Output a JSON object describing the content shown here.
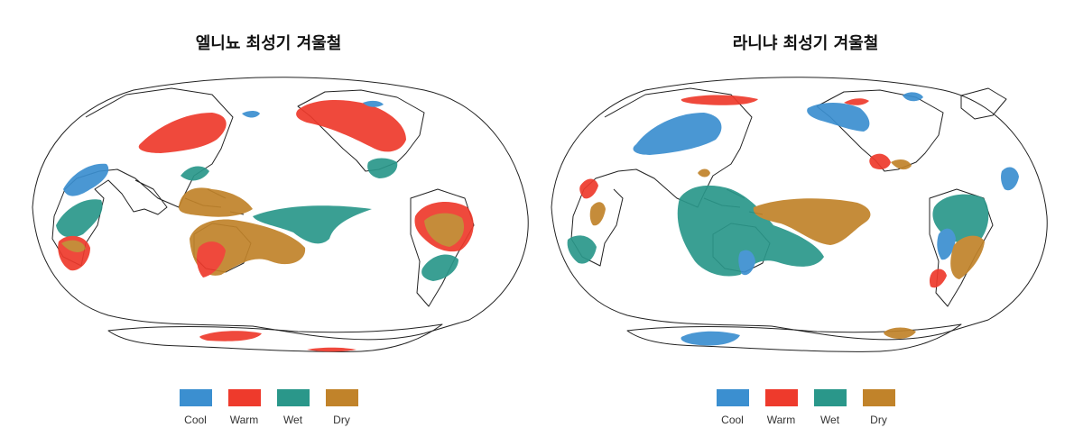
{
  "colors": {
    "cool": "#3b8fd0",
    "warm": "#ee3a2c",
    "wet": "#2a978a",
    "dry": "#c1832a"
  },
  "panels": [
    {
      "title": "엘니뇨 최성기 겨울철",
      "regions": [
        {
          "category": "warm",
          "area": "North Pacific / Northeast Asia"
        },
        {
          "category": "cool",
          "area": "Arctic Siberia"
        },
        {
          "category": "warm",
          "area": "Alaska and Canada"
        },
        {
          "category": "cool",
          "area": "Northern Canada"
        },
        {
          "category": "wet",
          "area": "Southeastern United States"
        },
        {
          "category": "cool",
          "area": "West Africa"
        },
        {
          "category": "wet",
          "area": "Southeast Africa"
        },
        {
          "category": "warm",
          "area": "Southern Africa"
        },
        {
          "category": "wet",
          "area": "Southeast Asia"
        },
        {
          "category": "dry",
          "area": "Maritime continent and western Pacific"
        },
        {
          "category": "wet",
          "area": "Central Pacific"
        },
        {
          "category": "dry",
          "area": "Australia and southwest Pacific"
        },
        {
          "category": "warm",
          "area": "Australia"
        },
        {
          "category": "warm",
          "area": "Northern South America"
        },
        {
          "category": "dry",
          "area": "Northern South America"
        },
        {
          "category": "wet",
          "area": "Southeastern South America"
        },
        {
          "category": "warm",
          "area": "Antarctica"
        }
      ]
    },
    {
      "title": "라니냐 최성기 겨울철",
      "regions": [
        {
          "category": "cool",
          "area": "Northeast Asia"
        },
        {
          "category": "warm",
          "area": "Arctic Siberia"
        },
        {
          "category": "cool",
          "area": "Alaska"
        },
        {
          "category": "warm",
          "area": "Northwest Canada"
        },
        {
          "category": "cool",
          "area": "Northern Canada"
        },
        {
          "category": "cool",
          "area": "Greenland / North Atlantic"
        },
        {
          "category": "warm",
          "area": "Southeastern United States"
        },
        {
          "category": "dry",
          "area": "Southeastern United States"
        },
        {
          "category": "warm",
          "area": "West Africa"
        },
        {
          "category": "dry",
          "area": "East Africa"
        },
        {
          "category": "wet",
          "area": "Southern Africa"
        },
        {
          "category": "dry",
          "area": "Arabian Sea"
        },
        {
          "category": "wet",
          "area": "Southeast Asia and Australia"
        },
        {
          "category": "dry",
          "area": "Central Pacific"
        },
        {
          "category": "cool",
          "area": "Australia"
        },
        {
          "category": "wet",
          "area": "Northern South America"
        },
        {
          "category": "cool",
          "area": "South America"
        },
        {
          "category": "dry",
          "area": "Southeastern South America"
        },
        {
          "category": "warm",
          "area": "Southern South America"
        },
        {
          "category": "cool",
          "area": "Antarctica"
        },
        {
          "category": "dry",
          "area": "Antarctic Peninsula"
        }
      ]
    }
  ],
  "legend": [
    {
      "key": "cool",
      "label": "Cool"
    },
    {
      "key": "warm",
      "label": "Warm"
    },
    {
      "key": "wet",
      "label": "Wet"
    },
    {
      "key": "dry",
      "label": "Dry"
    }
  ]
}
